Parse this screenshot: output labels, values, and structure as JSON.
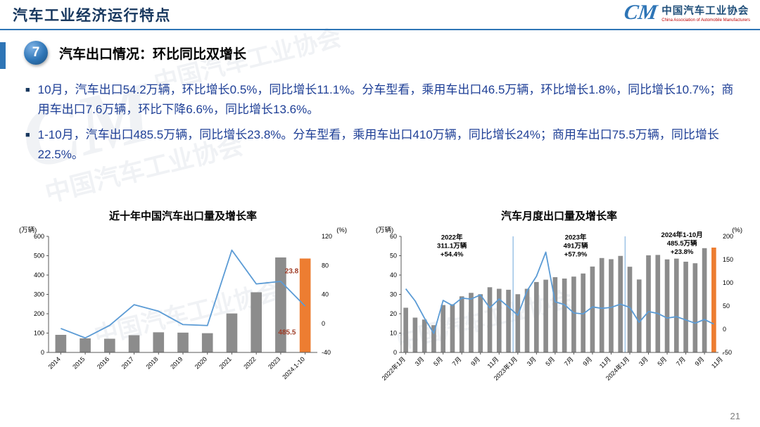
{
  "slide": {
    "header_title": "汽车工业经济运行特点",
    "page_number": "21"
  },
  "logo": {
    "mark": "CM",
    "org_cn": "中国汽车工业协会",
    "org_en": "China Association of Automobile Manufacturers"
  },
  "section": {
    "number": "7",
    "title": "汽车出口情况：环比同比双增长"
  },
  "bullets": [
    "10月，汽车出口54.2万辆，环比增长0.5%，同比增长11.1%。分车型看，乘用车出口46.5万辆，环比增长1.8%，同比增长10.7%；商用车出口7.6万辆，环比下降6.6%，同比增长13.6%。",
    "1-10月，汽车出口485.5万辆，同比增长23.8%。分车型看，乘用车出口410万辆，同比增长24%；商用车出口75.5万辆，同比增长22.5%。"
  ],
  "watermark": {
    "text": "中国汽车工业协会",
    "mark": "CM"
  },
  "colors": {
    "bar": "#8C8C8C",
    "bar_highlight": "#ED7D31",
    "line": "#5B9BD5",
    "separator": "#9DC3E6",
    "accent": "#2E75B6",
    "title_navy": "#17375E",
    "bullet_blue": "#1E3F96",
    "label_red": "#9E3B25",
    "page_gray": "#7F7F7F"
  },
  "chart_data": [
    {
      "type": "bar",
      "subtype": "bar+line dual axis",
      "title": "近十年中国汽车出口量及增长率",
      "left_axis_label": "(万辆)",
      "right_axis_label": "(%)",
      "left_ticks": [
        0,
        100,
        200,
        300,
        400,
        500,
        600
      ],
      "right_ticks": [
        -40,
        0,
        40,
        80,
        120
      ],
      "axis_ranges": {
        "left": [
          0,
          600
        ],
        "right": [
          -40,
          120
        ]
      },
      "categories": [
        "2014",
        "2015",
        "2016",
        "2017",
        "2018",
        "2019",
        "2020",
        "2021",
        "2022",
        "2023",
        "2024.1-10"
      ],
      "bars": {
        "name": "汽车出口量(万辆)",
        "values": [
          91,
          72.8,
          70.8,
          89.1,
          104.1,
          102.4,
          99.5,
          201.5,
          311.1,
          491,
          485.5
        ],
        "highlight_index": 10
      },
      "line": {
        "name": "增长率(%)",
        "values": [
          -7,
          -20,
          -2.7,
          25.8,
          16.8,
          -1.6,
          -2.9,
          101,
          54.4,
          57.9,
          23.8
        ]
      },
      "bar_ratio": 0.45,
      "annotations": [
        {
          "lines": [
            "23.8"
          ],
          "fx": 0.93,
          "fy": 0.25,
          "color": "#9E3B25",
          "bold": true,
          "anchor": "end",
          "size": 10
        },
        {
          "lines": [
            "485.5"
          ],
          "fx": 0.92,
          "fy": 0.78,
          "color": "#9E3B25",
          "bold": true,
          "anchor": "end",
          "size": 10
        }
      ]
    },
    {
      "type": "bar",
      "subtype": "bar+line dual axis",
      "title": "汽车月度出口量及增长率",
      "left_axis_label": "(万辆)",
      "right_axis_label": "(%)",
      "left_ticks": [
        0,
        10,
        20,
        30,
        40,
        50,
        60
      ],
      "right_ticks": [
        -50,
        0,
        50,
        100,
        150,
        200
      ],
      "axis_ranges": {
        "left": [
          0,
          60
        ],
        "right": [
          -50,
          200
        ]
      },
      "categories": [
        "2022年1月",
        "2022年2月",
        "2022年3月",
        "2022年4月",
        "2022年5月",
        "2022年6月",
        "2022年7月",
        "2022年8月",
        "2022年9月",
        "2022年10月",
        "2022年11月",
        "2022年12月",
        "2023年1月",
        "2023年2月",
        "2023年3月",
        "2023年4月",
        "2023年5月",
        "2023年6月",
        "2023年7月",
        "2023年8月",
        "2023年9月",
        "2023年10月",
        "2023年11月",
        "2023年12月",
        "2024年1月",
        "2024年2月",
        "2024年3月",
        "2024年4月",
        "2024年5月",
        "2024年6月",
        "2024年7月",
        "2024年8月",
        "2024年9月",
        "2024年10月"
      ],
      "x_ticks": [
        {
          "i": 0,
          "label": "2022年1月"
        },
        {
          "i": 2,
          "label": "3月"
        },
        {
          "i": 4,
          "label": "5月"
        },
        {
          "i": 6,
          "label": "7月"
        },
        {
          "i": 8,
          "label": "9月"
        },
        {
          "i": 10,
          "label": "11月"
        },
        {
          "i": 12,
          "label": "2023年1月"
        },
        {
          "i": 14,
          "label": "3月"
        },
        {
          "i": 16,
          "label": "5月"
        },
        {
          "i": 18,
          "label": "7月"
        },
        {
          "i": 20,
          "label": "9月"
        },
        {
          "i": 22,
          "label": "11月"
        },
        {
          "i": 24,
          "label": "2024年1月"
        },
        {
          "i": 26,
          "label": "3月"
        },
        {
          "i": 28,
          "label": "5月"
        },
        {
          "i": 30,
          "label": "7月"
        },
        {
          "i": 32,
          "label": "9月"
        },
        {
          "i": 34,
          "label": "11月"
        }
      ],
      "bars": {
        "name": "月度出口量(万辆)",
        "values": [
          23.1,
          18.0,
          17.0,
          14.1,
          24.5,
          24.9,
          29.0,
          30.8,
          30.1,
          33.7,
          32.9,
          32.4,
          30.1,
          32.9,
          36.4,
          37.6,
          38.9,
          38.2,
          39.2,
          40.8,
          44.4,
          48.8,
          48.2,
          49.9,
          44.3,
          37.7,
          50.2,
          50.4,
          48.1,
          48.5,
          46.9,
          46.1,
          53.9,
          54.2
        ],
        "highlight_index": 33
      },
      "line": {
        "name": "同比增长率(%)",
        "values": [
          87,
          61,
          24,
          -9,
          62,
          51,
          67,
          65,
          74,
          46,
          65,
          48,
          30,
          83,
          114,
          166,
          59,
          53,
          35,
          33,
          48,
          45,
          47,
          54,
          47,
          15,
          38,
          34,
          24,
          27,
          20,
          13,
          21,
          11.1
        ]
      },
      "bar_ratio": 0.5,
      "separators": [
        11.5,
        23.5
      ],
      "annotations": [
        {
          "lines": [
            "2022年",
            "311.1万辆",
            "+54.4%"
          ],
          "fx": 0.16,
          "fy": -0.04,
          "color": "#000000",
          "bold": true,
          "size": 9.5
        },
        {
          "lines": [
            "2023年",
            "491万辆",
            "+57.9%"
          ],
          "fx": 0.55,
          "fy": -0.04,
          "color": "#000000",
          "bold": true,
          "size": 9.5
        },
        {
          "lines": [
            "2024年1-10月",
            "485.5万辆",
            "+23.8%"
          ],
          "fx": 0.885,
          "fy": -0.06,
          "color": "#000000",
          "bold": true,
          "size": 9.5
        }
      ]
    }
  ]
}
